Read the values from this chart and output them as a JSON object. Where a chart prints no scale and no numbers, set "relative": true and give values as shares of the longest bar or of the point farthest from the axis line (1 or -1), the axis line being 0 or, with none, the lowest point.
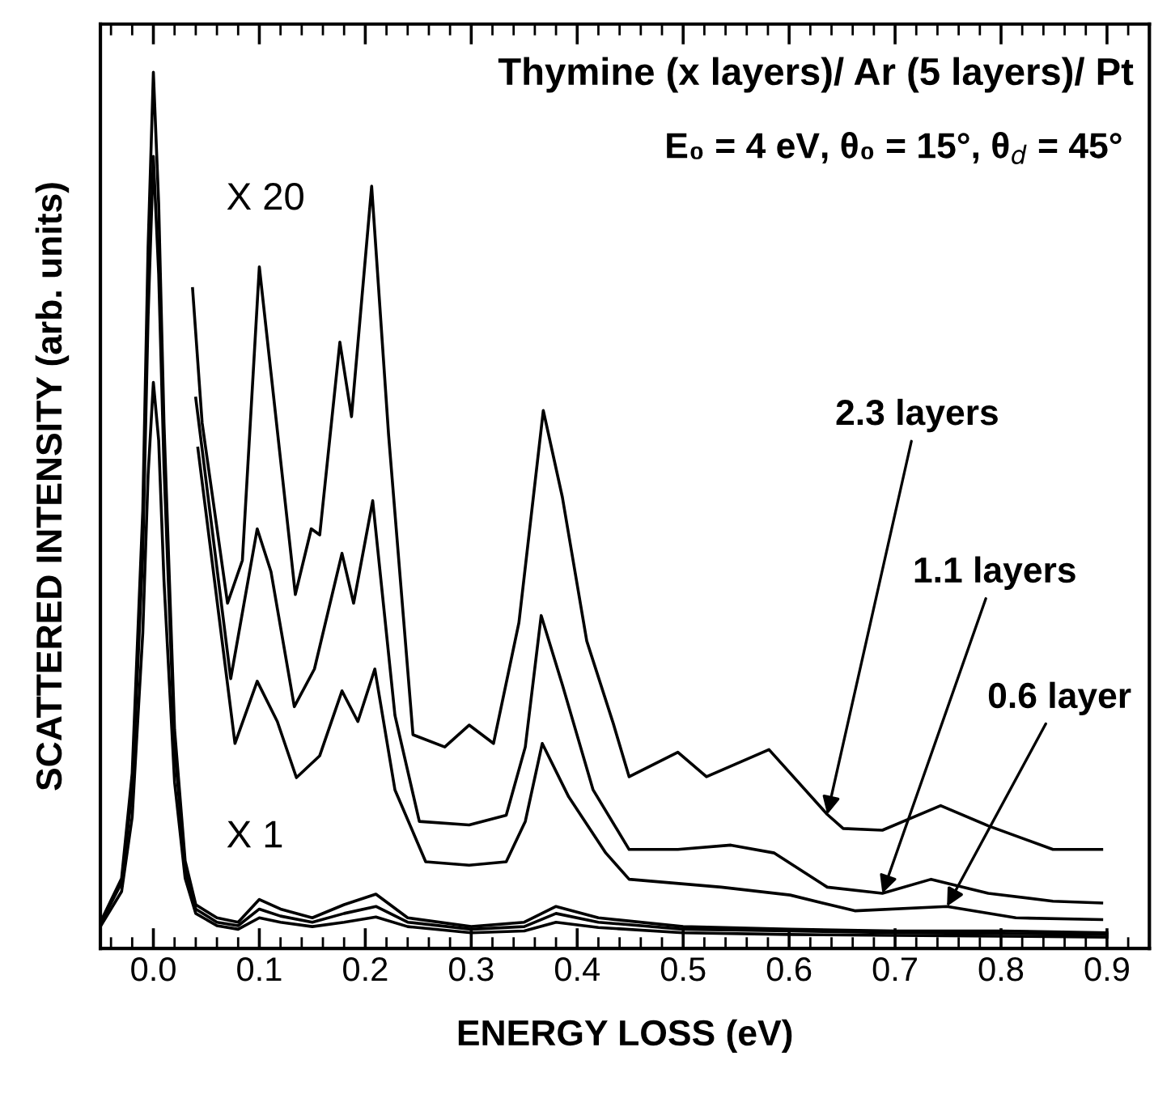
{
  "chart_data": {
    "type": "line",
    "relative": true,
    "title": "Thymine (x layers)/ Ar (5 layers)/ Pt",
    "subtitle": "E₀ = 4 eV, θ₀ = 15°, θ$_{d}$ = 45°",
    "xlabel": "ENERGY LOSS (eV)",
    "ylabel": "SCATTERED INTENSITY (arb. units)",
    "xlim": [
      -0.05,
      0.94
    ],
    "xticks": [
      {
        "value": 0,
        "label": "0.0"
      },
      0.1,
      0.2,
      0.3,
      0.4,
      0.5,
      0.6,
      0.7,
      0.8,
      0.9
    ],
    "legend": false,
    "grid": false,
    "marker": "none",
    "line_style": "solid",
    "annotations": [
      "X 20",
      "X 1",
      {
        "text": "2.3 layers",
        "x": 0.636,
        "y": 0.153
      },
      {
        "text": "1.1 layers",
        "x": 0.688,
        "y": 0.063
      },
      {
        "text": "0.6 layer",
        "x": 0.749,
        "y": 0.048
      }
    ],
    "series": [
      {
        "color": "#000000",
        "x": [
          -0.05,
          -0.03,
          -0.02,
          -0.01,
          -0.005,
          0,
          0.005,
          0.01,
          0.02,
          0.03,
          0.04,
          0.06,
          0.08,
          0.1,
          0.12,
          0.15,
          0.18,
          0.21,
          0.24,
          0.3,
          0.35,
          0.38,
          0.42,
          0.5,
          0.6,
          0.7,
          0.8,
          0.9
        ],
        "values": [
          0.03,
          0.08,
          0.2,
          0.5,
          0.8,
          1.0,
          0.85,
          0.6,
          0.25,
          0.1,
          0.05,
          0.035,
          0.03,
          0.056,
          0.045,
          0.035,
          0.05,
          0.062,
          0.035,
          0.025,
          0.03,
          0.048,
          0.035,
          0.025,
          0.022,
          0.02,
          0.02,
          0.018
        ]
      },
      {
        "color": "#000000",
        "x": [
          -0.05,
          -0.03,
          -0.02,
          -0.01,
          -0.005,
          0,
          0.005,
          0.01,
          0.02,
          0.03,
          0.04,
          0.06,
          0.08,
          0.1,
          0.12,
          0.15,
          0.18,
          0.21,
          0.24,
          0.3,
          0.35,
          0.38,
          0.42,
          0.5,
          0.6,
          0.7,
          0.8,
          0.9
        ],
        "values": [
          0.028,
          0.075,
          0.18,
          0.45,
          0.72,
          0.904,
          0.77,
          0.55,
          0.23,
          0.09,
          0.045,
          0.03,
          0.026,
          0.045,
          0.037,
          0.03,
          0.04,
          0.048,
          0.03,
          0.022,
          0.025,
          0.04,
          0.03,
          0.022,
          0.02,
          0.018,
          0.017,
          0.016
        ]
      },
      {
        "color": "#000000",
        "x": [
          -0.05,
          -0.03,
          -0.02,
          -0.01,
          -0.005,
          0,
          0.005,
          0.01,
          0.02,
          0.03,
          0.04,
          0.06,
          0.08,
          0.1,
          0.12,
          0.15,
          0.18,
          0.21,
          0.24,
          0.3,
          0.35,
          0.38,
          0.42,
          0.5,
          0.6,
          0.7,
          0.8,
          0.9
        ],
        "values": [
          0.025,
          0.065,
          0.15,
          0.36,
          0.54,
          0.646,
          0.58,
          0.42,
          0.19,
          0.08,
          0.04,
          0.026,
          0.022,
          0.035,
          0.03,
          0.025,
          0.03,
          0.036,
          0.025,
          0.018,
          0.02,
          0.03,
          0.024,
          0.018,
          0.016,
          0.015,
          0.014,
          0.013
        ]
      },
      {
        "color": "#000000",
        "x": [
          0.037,
          0.046,
          0.07,
          0.084,
          0.1,
          0.111,
          0.134,
          0.149,
          0.157,
          0.176,
          0.187,
          0.206,
          0.222,
          0.245,
          0.275,
          0.298,
          0.321,
          0.345,
          0.368,
          0.386,
          0.409,
          0.434,
          0.449,
          0.495,
          0.522,
          0.581,
          0.636,
          0.651,
          0.688,
          0.743,
          0.788,
          0.849,
          0.895
        ],
        "values": [
          0.753,
          0.6,
          0.394,
          0.443,
          0.778,
          0.657,
          0.404,
          0.479,
          0.472,
          0.692,
          0.607,
          0.87,
          0.586,
          0.244,
          0.23,
          0.255,
          0.234,
          0.372,
          0.614,
          0.515,
          0.351,
          0.257,
          0.196,
          0.224,
          0.196,
          0.227,
          0.153,
          0.137,
          0.135,
          0.163,
          0.14,
          0.113,
          0.113
        ]
      },
      {
        "color": "#000000",
        "x": [
          0.04,
          0.073,
          0.098,
          0.111,
          0.133,
          0.152,
          0.178,
          0.189,
          0.207,
          0.228,
          0.251,
          0.298,
          0.333,
          0.351,
          0.366,
          0.386,
          0.415,
          0.449,
          0.495,
          0.545,
          0.586,
          0.636,
          0.688,
          0.734,
          0.788,
          0.849,
          0.895
        ],
        "values": [
          0.628,
          0.308,
          0.479,
          0.43,
          0.276,
          0.319,
          0.451,
          0.394,
          0.511,
          0.266,
          0.145,
          0.141,
          0.152,
          0.23,
          0.38,
          0.301,
          0.181,
          0.113,
          0.113,
          0.118,
          0.109,
          0.07,
          0.063,
          0.079,
          0.063,
          0.054,
          0.052
        ]
      },
      {
        "color": "#000000",
        "x": [
          0.042,
          0.077,
          0.098,
          0.117,
          0.135,
          0.157,
          0.178,
          0.193,
          0.209,
          0.228,
          0.257,
          0.298,
          0.333,
          0.351,
          0.367,
          0.392,
          0.427,
          0.449,
          0.536,
          0.601,
          0.662,
          0.749,
          0.814,
          0.895
        ],
        "values": [
          0.571,
          0.234,
          0.305,
          0.259,
          0.195,
          0.22,
          0.294,
          0.259,
          0.319,
          0.181,
          0.099,
          0.095,
          0.099,
          0.145,
          0.234,
          0.173,
          0.109,
          0.079,
          0.07,
          0.061,
          0.043,
          0.048,
          0.035,
          0.033
        ]
      }
    ]
  }
}
